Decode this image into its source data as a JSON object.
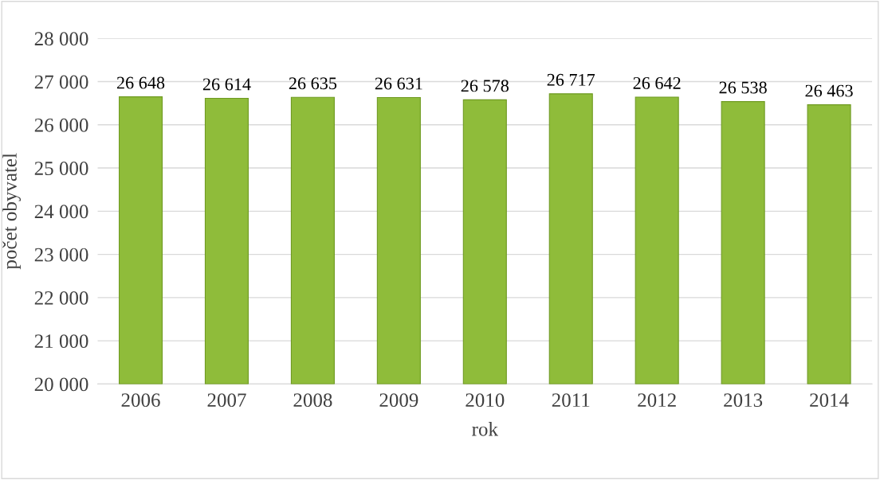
{
  "chart_data": {
    "type": "bar",
    "xlabel": "rok",
    "ylabel": "počet obyvatel",
    "categories": [
      "2006",
      "2007",
      "2008",
      "2009",
      "2010",
      "2011",
      "2012",
      "2013",
      "2014"
    ],
    "values": [
      26648,
      26614,
      26635,
      26631,
      26578,
      26717,
      26642,
      26538,
      26463
    ],
    "value_labels": [
      "26 648",
      "26 614",
      "26 635",
      "26 631",
      "26 578",
      "26 717",
      "26 642",
      "26 538",
      "26 463"
    ],
    "color": "#8fbc3a",
    "ylim": [
      20000,
      28000
    ],
    "yticks": [
      {
        "value": 20000,
        "label": "20 000"
      },
      {
        "value": 21000,
        "label": "21 000"
      },
      {
        "value": 22000,
        "label": "22 000"
      },
      {
        "value": 23000,
        "label": "23 000"
      },
      {
        "value": 24000,
        "label": "24 000"
      },
      {
        "value": 25000,
        "label": "25 000"
      },
      {
        "value": 26000,
        "label": "26 000"
      },
      {
        "value": 27000,
        "label": "27 000"
      },
      {
        "value": 28000,
        "label": "28 000"
      }
    ],
    "grid": "y",
    "legend": false
  }
}
